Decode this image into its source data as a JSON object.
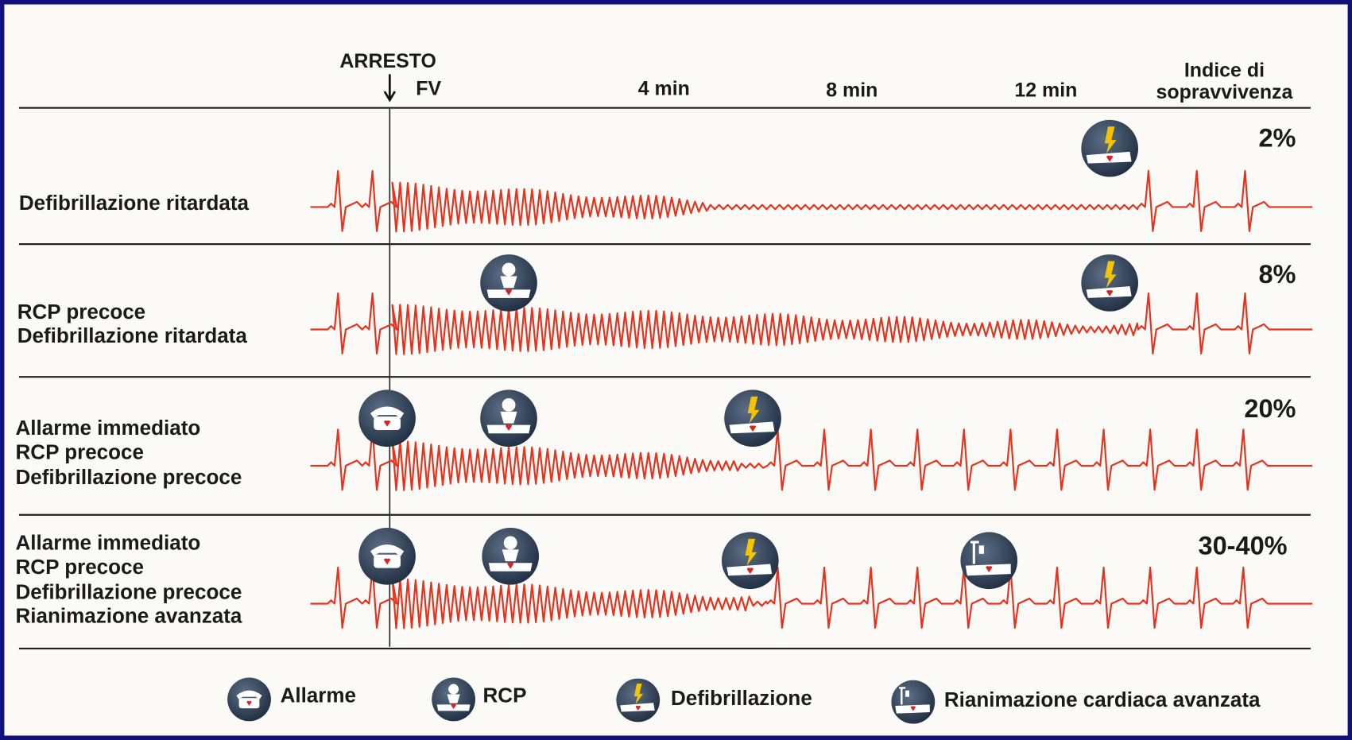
{
  "header": {
    "arrest": "ARRESTO",
    "fv": "FV",
    "times": [
      "4 min",
      "8 min",
      "12 min"
    ],
    "survival_title": [
      "Indice di",
      "sopravvivenza"
    ]
  },
  "rows": [
    {
      "labels": [
        "Defibrillazione ritardata"
      ],
      "survival": "2%"
    },
    {
      "labels": [
        "RCP precoce",
        "Defibrillazione ritardata"
      ],
      "survival": "8%"
    },
    {
      "labels": [
        "Allarme immediato",
        "RCP precoce",
        "Defibrillazione precoce"
      ],
      "survival": "20%"
    },
    {
      "labels": [
        "Allarme immediato",
        "RCP precoce",
        "Defibrillazione precoce",
        "Rianimazione avanzata"
      ],
      "survival": "30-40%"
    }
  ],
  "legend": [
    {
      "label": "Allarme"
    },
    {
      "label": "RCP"
    },
    {
      "label": "Defibrillazione"
    },
    {
      "label": "Rianimazione cardiaca avanzata"
    }
  ]
}
